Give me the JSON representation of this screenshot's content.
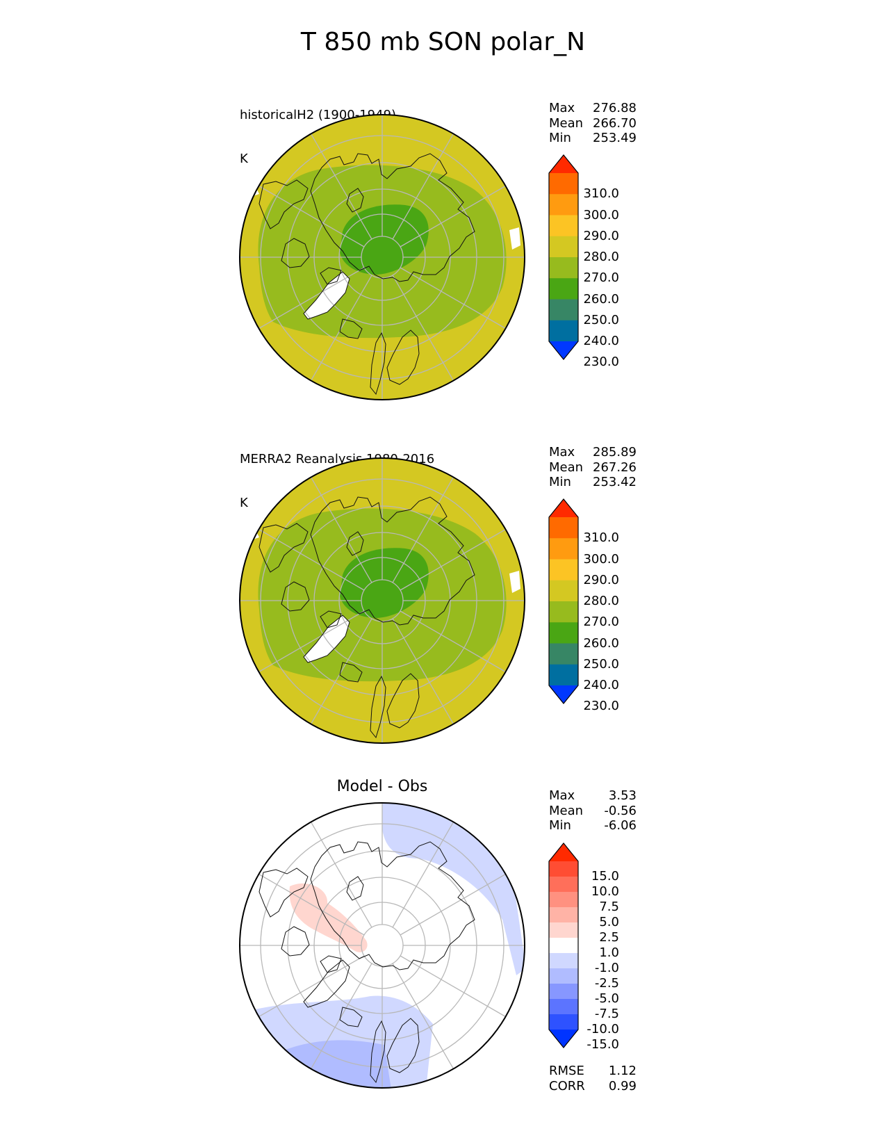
{
  "title": "T 850 mb SON polar_N",
  "panels": [
    {
      "id": "model",
      "title_lines": [
        "historicalH2 (1900-1949)",
        "K"
      ],
      "stats": [
        {
          "label": "Max",
          "value": "276.88"
        },
        {
          "label": "Mean",
          "value": "266.70"
        },
        {
          "label": "Min",
          "value": "253.49"
        }
      ],
      "colorbar": {
        "ticks": [
          "310.0",
          "300.0",
          "290.0",
          "280.0",
          "270.0",
          "260.0",
          "250.0",
          "240.0",
          "230.0"
        ],
        "colors": [
          "#ff2a00",
          "#ff6a00",
          "#ff9b10",
          "#fcc424",
          "#d4c822",
          "#97bb1e",
          "#4aa614",
          "#378665",
          "#006fa0",
          "#0038ff"
        ]
      },
      "fill": {
        "outer": "#d4c822",
        "mid": "#97bb1e",
        "inner": "#4aa614"
      }
    },
    {
      "id": "obs",
      "title_lines": [
        "MERRA2 Reanalysis 1980-2016",
        "K"
      ],
      "stats": [
        {
          "label": "Max",
          "value": "285.89"
        },
        {
          "label": "Mean",
          "value": "267.26"
        },
        {
          "label": "Min",
          "value": "253.42"
        }
      ],
      "colorbar": {
        "ticks": [
          "310.0",
          "300.0",
          "290.0",
          "280.0",
          "270.0",
          "260.0",
          "250.0",
          "240.0",
          "230.0"
        ],
        "colors": [
          "#ff2a00",
          "#ff6a00",
          "#ff9b10",
          "#fcc424",
          "#d4c822",
          "#97bb1e",
          "#4aa614",
          "#378665",
          "#006fa0",
          "#0038ff"
        ]
      },
      "fill": {
        "outer": "#d4c822",
        "mid": "#97bb1e",
        "inner": "#4aa614"
      }
    },
    {
      "id": "diff",
      "title": "Model - Obs",
      "stats": [
        {
          "label": "Max",
          "value": "3.53"
        },
        {
          "label": "Mean",
          "value": "-0.56"
        },
        {
          "label": "Min",
          "value": "-6.06"
        }
      ],
      "colorbar": {
        "ticks": [
          "15.0",
          "10.0",
          "7.5",
          "5.0",
          "2.5",
          "1.0",
          "-1.0",
          "-2.5",
          "-5.0",
          "-7.5",
          "-10.0",
          "-15.0"
        ],
        "colors": [
          "#ff2a00",
          "#ff4d33",
          "#ff6f5a",
          "#ff9180",
          "#ffb3a6",
          "#ffd6cf",
          "#ffffff",
          "#d0d8ff",
          "#b0bcff",
          "#8797ff",
          "#5c74ff",
          "#2e52ff",
          "#0034ff"
        ]
      },
      "metrics": [
        {
          "label": "RMSE",
          "value": "1.12"
        },
        {
          "label": "CORR",
          "value": "0.99"
        }
      ]
    }
  ]
}
